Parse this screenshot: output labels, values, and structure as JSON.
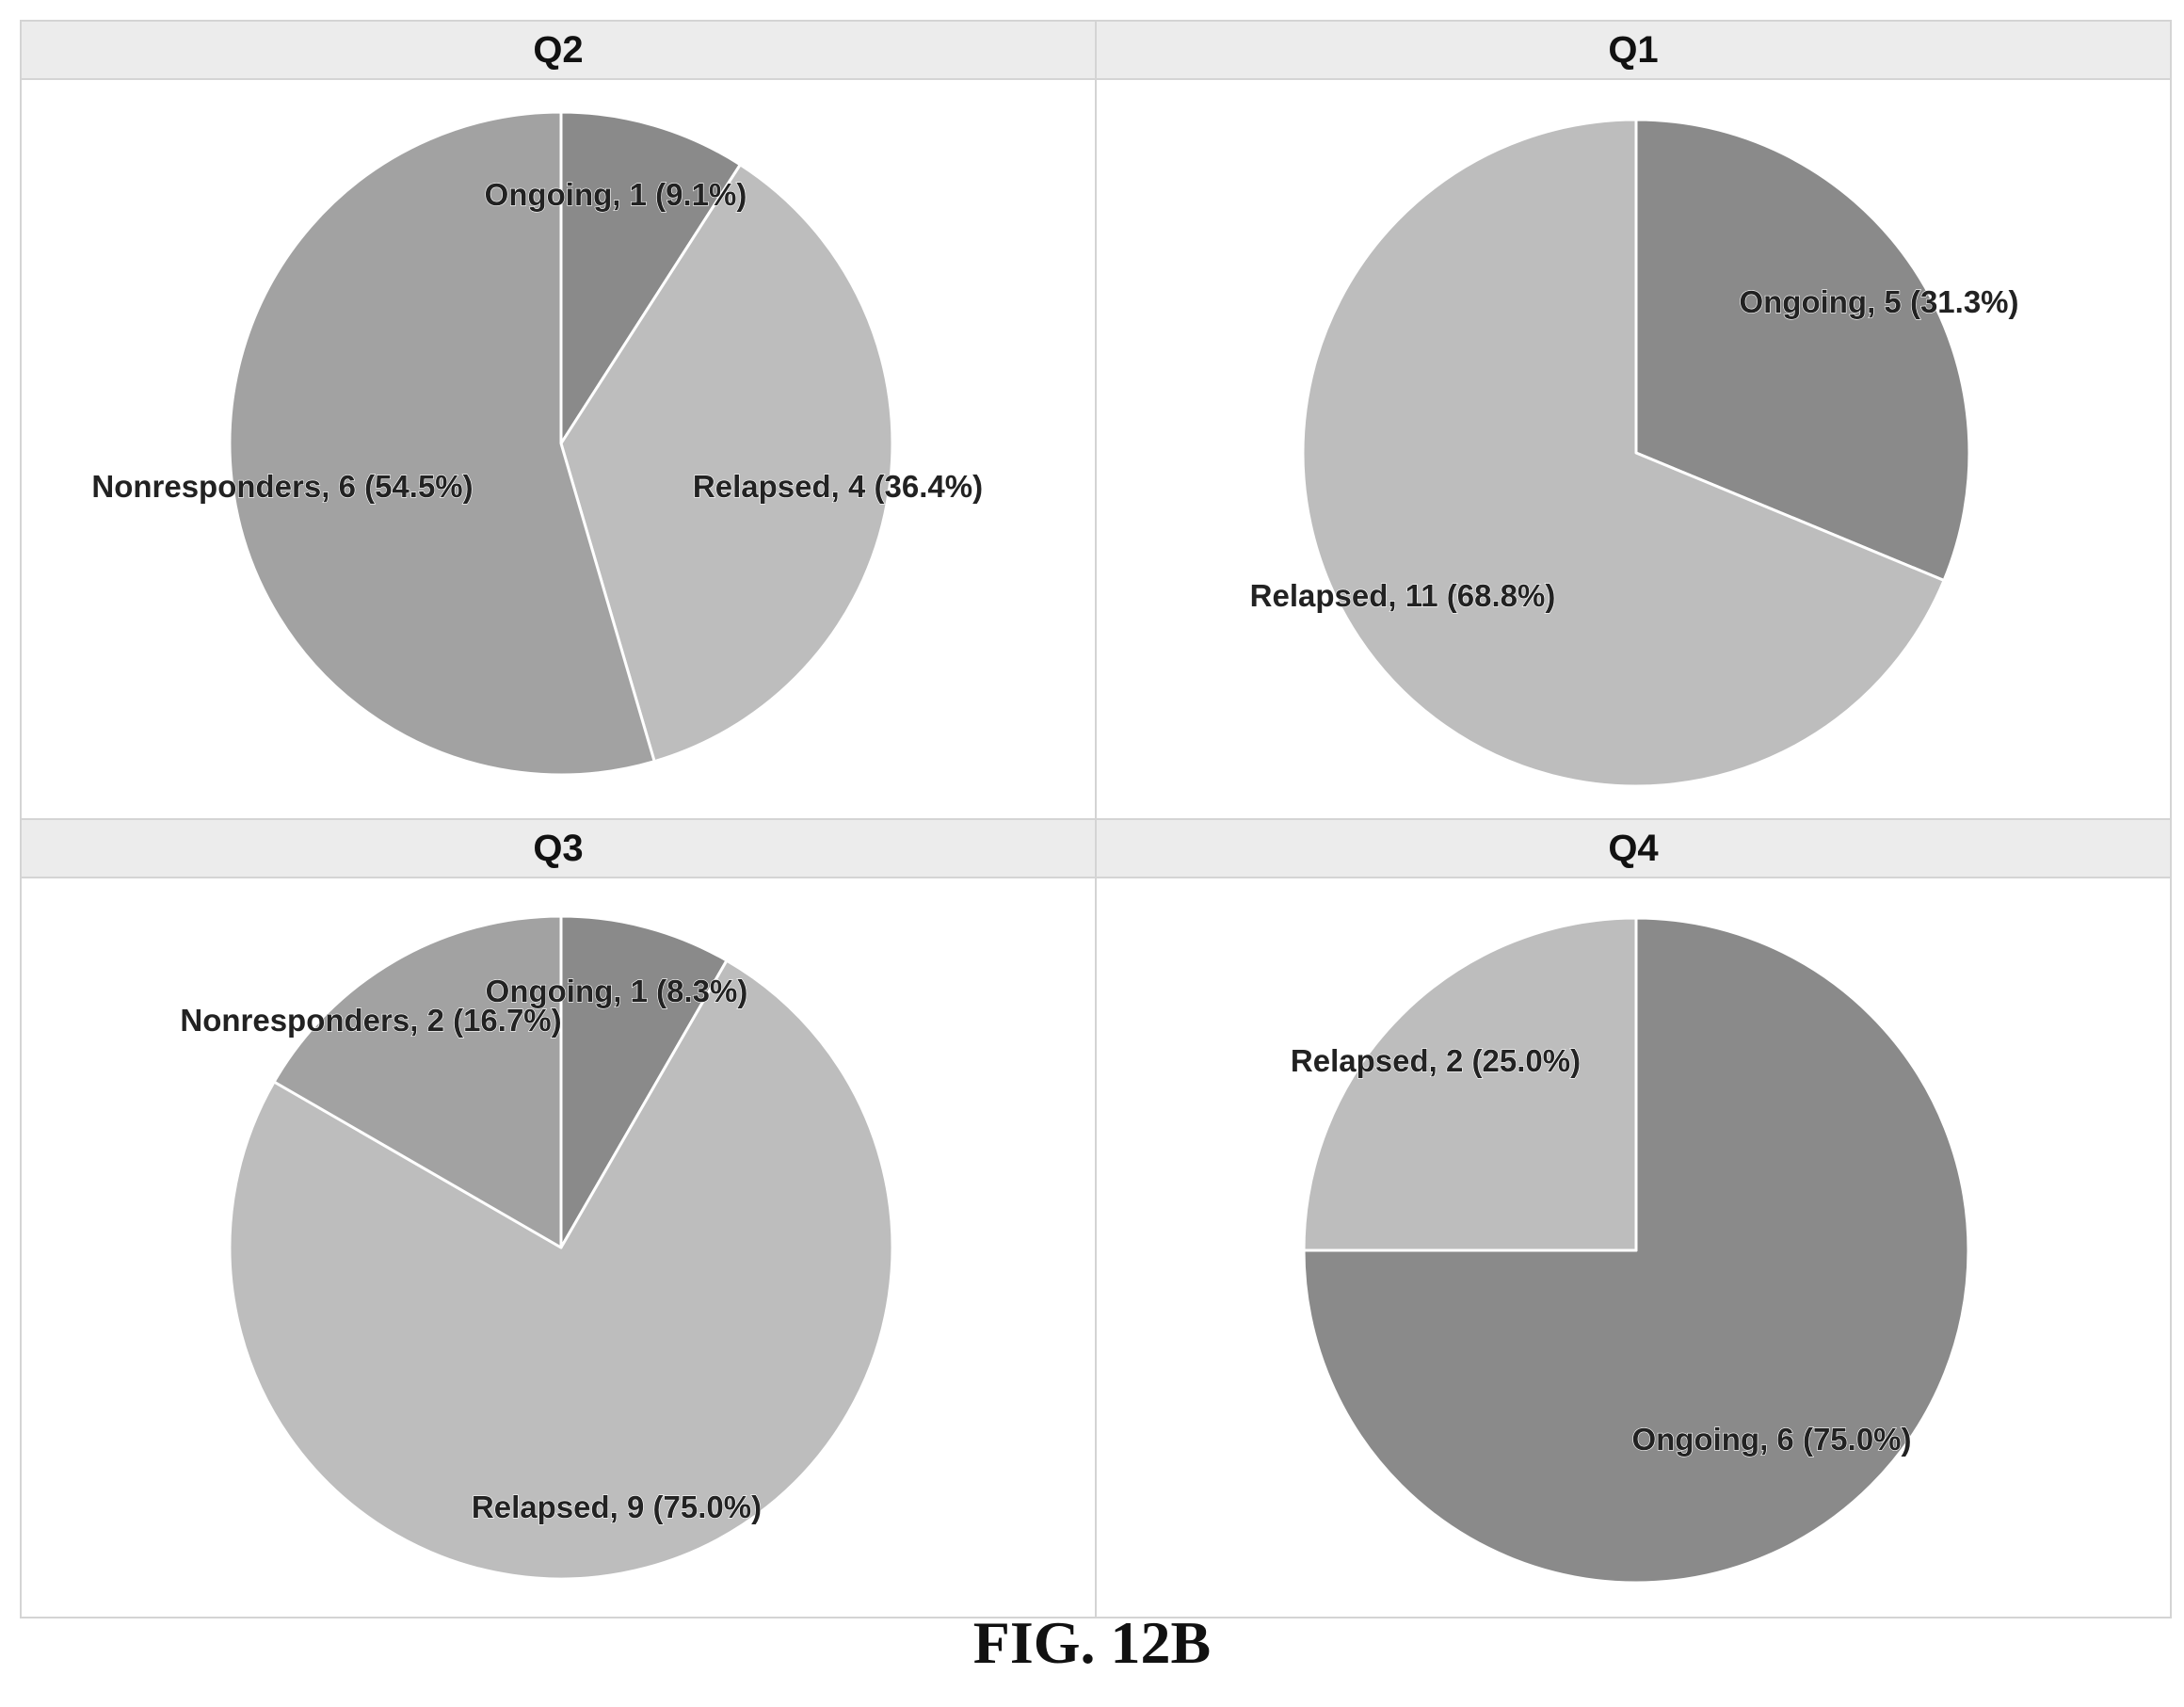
{
  "figure": {
    "caption": "FIG. 12B"
  },
  "colors": {
    "ongoing": "#8a8a8a",
    "relapsed": "#bdbdbd",
    "nonresponders": "#a2a2a2",
    "header_band": "#ececec",
    "slice_border": "#ffffff",
    "label_text": "#222222"
  },
  "chart_data": [
    {
      "type": "pie",
      "title": "Q2",
      "slices": [
        {
          "label": "Ongoing",
          "value": 1,
          "percent": 9.1,
          "data_label": "Ongoing, 1 (9.1%)",
          "color_key": "ongoing"
        },
        {
          "label": "Relapsed",
          "value": 4,
          "percent": 36.4,
          "data_label": "Relapsed, 4 (36.4%)",
          "color_key": "relapsed"
        },
        {
          "label": "Nonresponders",
          "value": 6,
          "percent": 54.5,
          "data_label": "Nonresponders, 6 (54.5%)",
          "color_key": "nonresponders"
        }
      ]
    },
    {
      "type": "pie",
      "title": "Q1",
      "slices": [
        {
          "label": "Ongoing",
          "value": 5,
          "percent": 31.3,
          "data_label": "Ongoing, 5 (31.3%)",
          "color_key": "ongoing"
        },
        {
          "label": "Relapsed",
          "value": 11,
          "percent": 68.8,
          "data_label": "Relapsed, 11 (68.8%)",
          "color_key": "relapsed"
        }
      ]
    },
    {
      "type": "pie",
      "title": "Q3",
      "slices": [
        {
          "label": "Ongoing",
          "value": 1,
          "percent": 8.3,
          "data_label": "Ongoing, 1 (8.3%)",
          "color_key": "ongoing"
        },
        {
          "label": "Relapsed",
          "value": 9,
          "percent": 75.0,
          "data_label": "Relapsed, 9 (75.0%)",
          "color_key": "relapsed"
        },
        {
          "label": "Nonresponders",
          "value": 2,
          "percent": 16.7,
          "data_label": "Nonresponders, 2 (16.7%)",
          "color_key": "nonresponders"
        }
      ]
    },
    {
      "type": "pie",
      "title": "Q4",
      "slices": [
        {
          "label": "Ongoing",
          "value": 6,
          "percent": 75.0,
          "data_label": "Ongoing, 6 (75.0%)",
          "color_key": "ongoing"
        },
        {
          "label": "Relapsed",
          "value": 2,
          "percent": 25.0,
          "data_label": "Relapsed, 2 (25.0%)",
          "color_key": "relapsed"
        }
      ]
    }
  ]
}
